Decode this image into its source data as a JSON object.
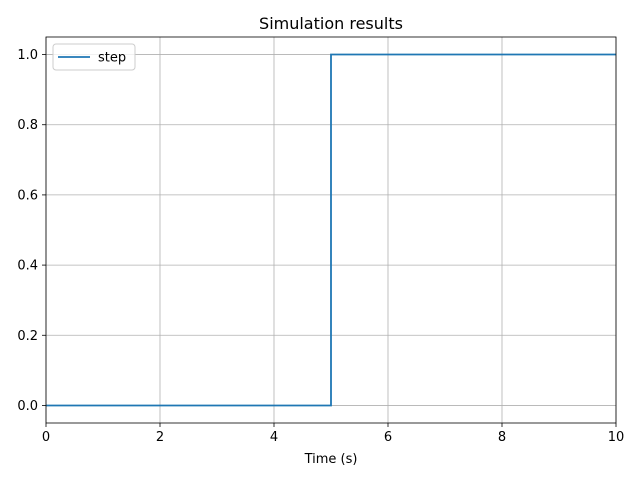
{
  "chart_data": {
    "type": "line",
    "title": "Simulation results",
    "xlabel": "Time (s)",
    "ylabel": "",
    "xlim": [
      0,
      10
    ],
    "ylim": [
      -0.05,
      1.05
    ],
    "xticks": [
      0,
      2,
      4,
      6,
      8,
      10
    ],
    "xtick_labels": [
      "0",
      "2",
      "4",
      "6",
      "8",
      "10"
    ],
    "yticks": [
      0.0,
      0.2,
      0.4,
      0.6,
      0.8,
      1.0
    ],
    "ytick_labels": [
      "0.0",
      "0.2",
      "0.4",
      "0.6",
      "0.8",
      "1.0"
    ],
    "grid": true,
    "legend_position": "top-left",
    "series": [
      {
        "name": "step",
        "color": "#1f77b4",
        "x": [
          0,
          5,
          5,
          10
        ],
        "y": [
          0,
          0,
          1,
          1
        ]
      }
    ]
  }
}
